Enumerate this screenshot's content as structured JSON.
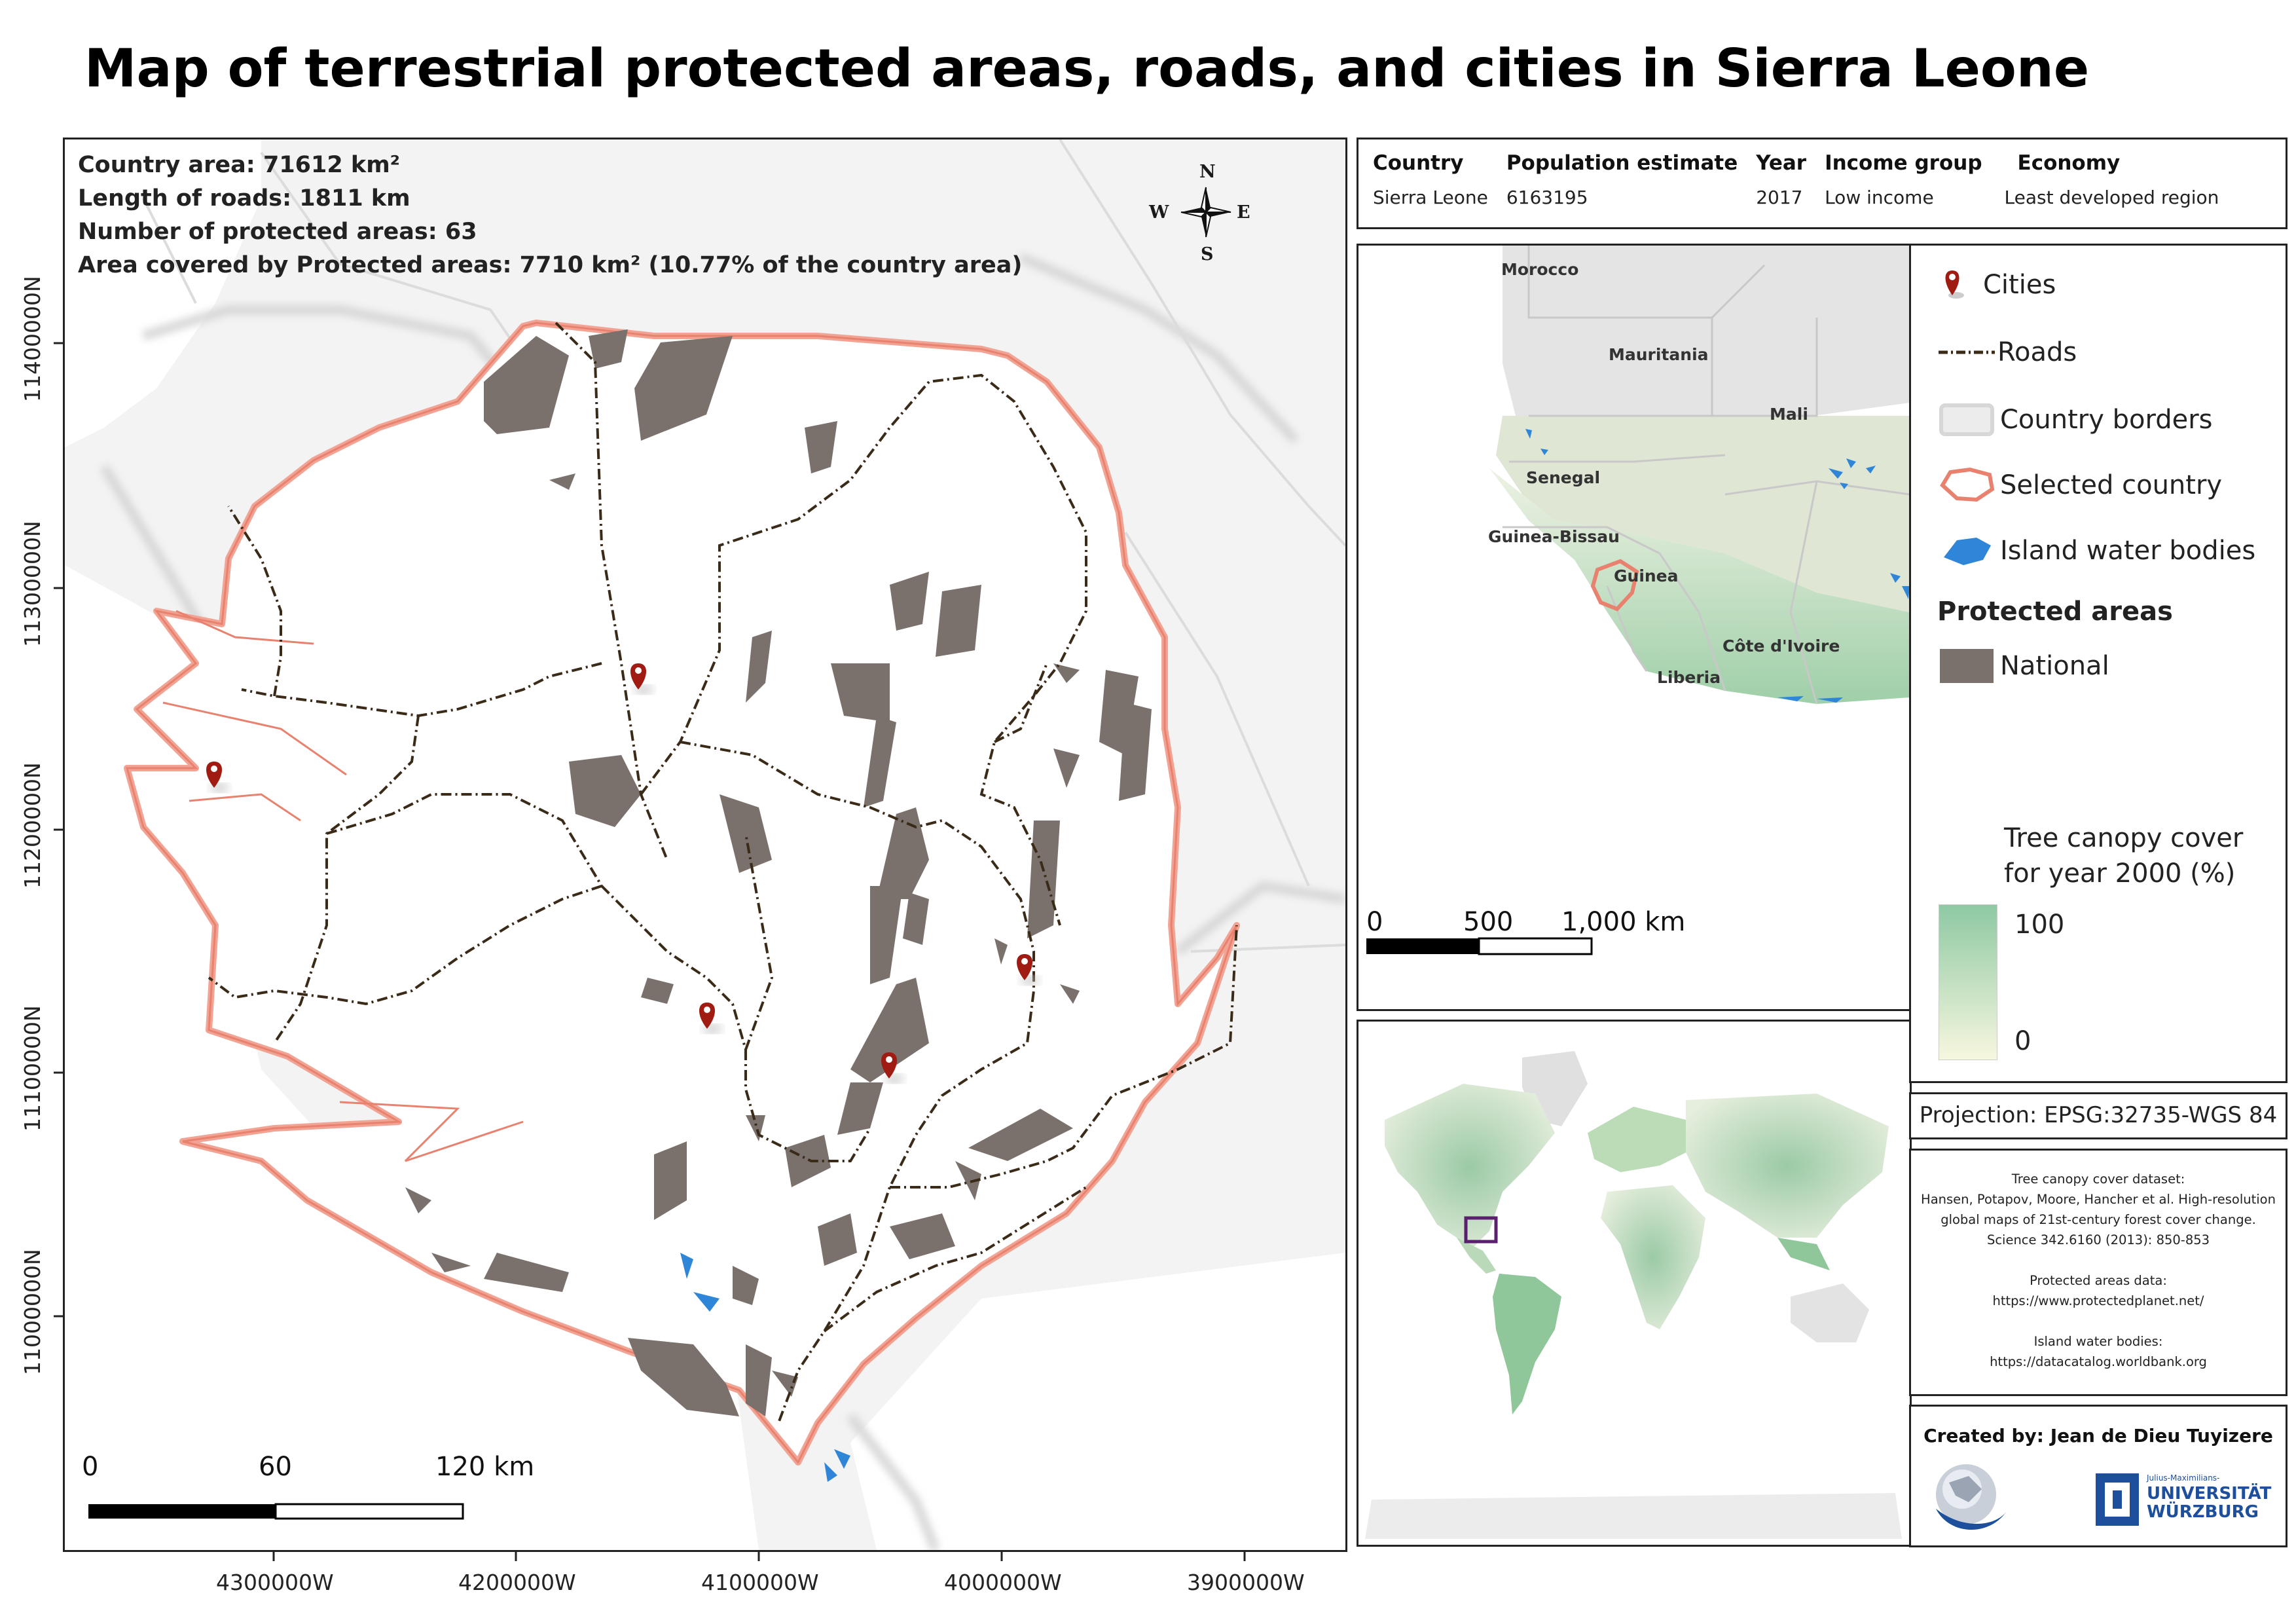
{
  "title": "Map of terrestrial protected areas, roads, and cities in Sierra Leone",
  "stats": {
    "country_area": "Country area: 71612 km²",
    "road_length": "Length of roads: 1811 km",
    "protected_count": "Number of protected areas: 63",
    "protected_area": "Area covered by Protected areas: 7710 km² (10.77% of the country area)"
  },
  "compass": {
    "n": "N",
    "s": "S",
    "e": "E",
    "w": "W"
  },
  "main_scale": {
    "t0": "0",
    "t1": "60",
    "t2": "120 km"
  },
  "x_ticks": [
    "4300000W",
    "4200000W",
    "4100000W",
    "4000000W",
    "3900000W"
  ],
  "y_ticks": [
    "11400000N",
    "11300000N",
    "11200000N",
    "11100000N",
    "11000000N"
  ],
  "info_table": {
    "headers": [
      "Country",
      "Population estimate",
      "Year",
      "Income group",
      "Economy"
    ],
    "row": [
      "Sierra Leone",
      "6163195",
      "2017",
      "Low income",
      "Least developed region"
    ]
  },
  "regional_map": {
    "labels": [
      "Morocco",
      "Mauritania",
      "Mali",
      "Senegal",
      "Guinea-Bissau",
      "Guinea",
      "Côte d'Ivoire",
      "Liberia"
    ],
    "scale": {
      "t0": "0",
      "t1": "500",
      "t2": "1,000 km"
    }
  },
  "legend": {
    "items": [
      "Cities",
      "Roads",
      "Country borders",
      "Selected country",
      "Island water bodies"
    ],
    "protected_heading": "Protected areas",
    "national": "National",
    "canopy_title_1": "Tree canopy cover",
    "canopy_title_2": "for year 2000 (%)",
    "canopy_max": "100",
    "canopy_min": "0"
  },
  "projection": "Projection: EPSG:32735-WGS 84",
  "sources": [
    "Tree canopy cover dataset:",
    "Hansen, Potapov, Moore, Hancher et al. High-resolution",
    "global maps of 21st-century forest cover change.",
    "Science 342.6160 (2013): 850-853",
    "",
    "Protected areas data:",
    "https://www.protectedplanet.net/",
    "",
    "Island water bodies:",
    "https://datacatalog.worldbank.org"
  ],
  "credits": {
    "created_by": "Created by: Jean de Dieu Tuyizere",
    "uni_small": "Julius-Maximilians-",
    "uni_line1": "UNIVERSITÄT",
    "uni_line2": "WÜRZBURG"
  },
  "colors": {
    "protected": "#7a716c",
    "road": "#3a2a18",
    "country_outline": "#e8826f",
    "water": "#2f86d8",
    "city": "#a01c12",
    "canopy_high": "#8ec9a3",
    "canopy_low": "#f7f7df",
    "world_box": "#5a1f6e"
  }
}
